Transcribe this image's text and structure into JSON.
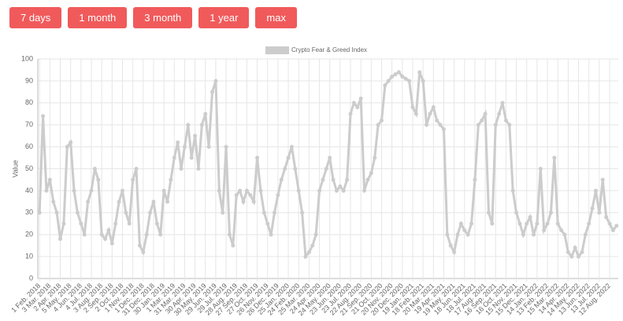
{
  "buttons": [
    "7 days",
    "1 month",
    "3 month",
    "1 year",
    "max"
  ],
  "chart_data": {
    "type": "line",
    "ylabel": "Value",
    "legend": "top",
    "grid": true,
    "ylim": [
      0,
      100
    ],
    "yticks": [
      0,
      10,
      20,
      30,
      40,
      50,
      60,
      70,
      80,
      90,
      100
    ],
    "categories": [
      "1 Feb. 2018",
      null,
      null,
      "3 Mar. 2018",
      null,
      null,
      "2 Apr. 2018",
      null,
      null,
      "5 May. 2018",
      null,
      null,
      "4 Jun. 2018",
      null,
      null,
      "4 Jul. 2018",
      null,
      null,
      "3 Aug. 2018",
      null,
      null,
      "2 Sep. 2018",
      null,
      null,
      "2 Oct. 2018",
      null,
      null,
      "1 Nov. 2018",
      null,
      null,
      "1 Dec. 2018",
      null,
      null,
      "31 Dec. 2018",
      null,
      null,
      "30 Jan. 2019",
      null,
      null,
      "1 Mar. 2019",
      null,
      null,
      "31 Mar. 2019",
      null,
      null,
      "30 Apr. 2019",
      null,
      null,
      "30 May. 2019",
      null,
      null,
      "29 Jun. 2019",
      null,
      null,
      "29 Jul. 2019",
      null,
      null,
      "28 Aug. 2019",
      null,
      null,
      "27 Sep. 2019",
      null,
      null,
      "27 Oct. 2019",
      null,
      null,
      "26 Nov. 2019",
      null,
      null,
      "26 Dec. 2019",
      null,
      null,
      "25 Jan. 2020",
      null,
      null,
      "24 Feb. 2020",
      null,
      null,
      "25 Mar. 2020",
      null,
      null,
      "24 Apr. 2020",
      null,
      null,
      "24 May. 2020",
      null,
      null,
      "23 Jun. 2020",
      null,
      null,
      "23 Jul. 2020",
      null,
      null,
      "22 Aug. 2020",
      null,
      null,
      "21 Sep. 2020",
      null,
      null,
      "21 Oct. 2020",
      null,
      null,
      "20 Nov. 2020",
      null,
      null,
      "20 Dec. 2020",
      null,
      null,
      "19 Jan. 2021",
      null,
      null,
      "18 Feb. 2021",
      null,
      null,
      "20 Mar. 2021",
      null,
      null,
      "19 Apr. 2021",
      null,
      null,
      "19 May. 2021",
      null,
      null,
      "18 Jun. 2021",
      null,
      null,
      "18 Jul. 2021",
      null,
      null,
      "17 Aug. 2021",
      null,
      null,
      "16 Sep. 2021",
      null,
      null,
      "16 Oct. 2021",
      null,
      null,
      "15 Nov. 2021",
      null,
      null,
      "15 Dec. 2021",
      null,
      null,
      "14 Jan. 2022",
      null,
      null,
      "13 Feb. 2022",
      null,
      null,
      "15 Mar. 2022",
      null,
      null,
      "14 Apr. 2022",
      null,
      null,
      "14 May. 2022",
      null,
      null,
      "13 Jun. 2022",
      null,
      null,
      "13 Jul. 2022",
      null,
      null,
      "12 Aug. 2022",
      null,
      null
    ],
    "series": [
      {
        "name": "Crypto Fear & Greed Index",
        "color": "#cccccc",
        "values": [
          30,
          74,
          40,
          45,
          35,
          30,
          18,
          25,
          60,
          62,
          40,
          30,
          25,
          20,
          35,
          40,
          50,
          45,
          20,
          18,
          22,
          16,
          25,
          35,
          40,
          30,
          25,
          45,
          50,
          15,
          12,
          20,
          30,
          35,
          25,
          20,
          40,
          35,
          45,
          55,
          62,
          50,
          60,
          70,
          55,
          65,
          50,
          70,
          75,
          60,
          85,
          90,
          40,
          30,
          60,
          20,
          15,
          38,
          40,
          35,
          40,
          38,
          35,
          55,
          40,
          30,
          25,
          20,
          30,
          38,
          45,
          50,
          55,
          60,
          50,
          40,
          30,
          10,
          12,
          15,
          20,
          40,
          45,
          50,
          55,
          45,
          40,
          42,
          40,
          45,
          75,
          80,
          78,
          82,
          40,
          45,
          48,
          55,
          70,
          72,
          88,
          90,
          92,
          93,
          94,
          92,
          91,
          90,
          78,
          75,
          94,
          90,
          70,
          75,
          78,
          72,
          70,
          68,
          20,
          15,
          12,
          20,
          25,
          22,
          20,
          25,
          45,
          70,
          72,
          75,
          30,
          25,
          70,
          75,
          80,
          72,
          70,
          40,
          30,
          25,
          20,
          25,
          28,
          20,
          25,
          50,
          22,
          25,
          30,
          55,
          25,
          22,
          20,
          12,
          10,
          14,
          10,
          12,
          20,
          25,
          32,
          40,
          30,
          45,
          28,
          25,
          22,
          24
        ]
      }
    ]
  }
}
